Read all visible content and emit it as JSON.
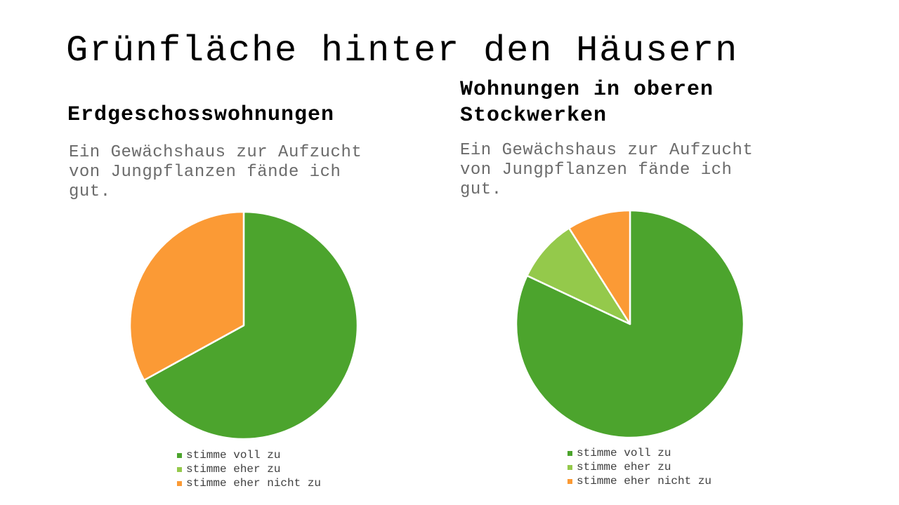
{
  "slide": {
    "title": "Grünfläche hinter den Häusern"
  },
  "sections": [
    {
      "heading": "Erdgeschosswohnungen",
      "question": "Ein Gewächshaus zur Aufzucht von Jungpflanzen fände ich gut."
    },
    {
      "heading": "Wohnungen in oberen Stockwerken",
      "question": "Ein Gewächshaus zur Aufzucht von Jungpflanzen fände ich gut."
    }
  ],
  "colors": {
    "agree_full": "#4CA42D",
    "agree_somewhat": "#94C94B",
    "disagree_somewhat": "#FB9A35"
  },
  "chart_data": [
    {
      "type": "pie",
      "title": "Erdgeschosswohnungen",
      "subtitle": "Ein Gewächshaus zur Aufzucht von Jungpflanzen fände ich gut.",
      "labels": [
        "stimme voll zu",
        "stimme eher zu",
        "stimme eher nicht zu"
      ],
      "values_percent": [
        67,
        0,
        33
      ],
      "colors": [
        "#4CA42D",
        "#94C94B",
        "#FB9A35"
      ],
      "start_angle_deg": 0,
      "direction": "clockwise",
      "slice_border_color": "#ffffff",
      "legend_position": "bottom"
    },
    {
      "type": "pie",
      "title": "Wohnungen in oberen Stockwerken",
      "subtitle": "Ein Gewächshaus zur Aufzucht von Jungpflanzen fände ich gut.",
      "labels": [
        "stimme voll zu",
        "stimme eher zu",
        "stimme eher nicht zu"
      ],
      "values_percent": [
        82,
        9,
        9
      ],
      "colors": [
        "#4CA42D",
        "#94C94B",
        "#FB9A35"
      ],
      "start_angle_deg": 0,
      "direction": "clockwise",
      "slice_border_color": "#ffffff",
      "legend_position": "bottom"
    }
  ]
}
